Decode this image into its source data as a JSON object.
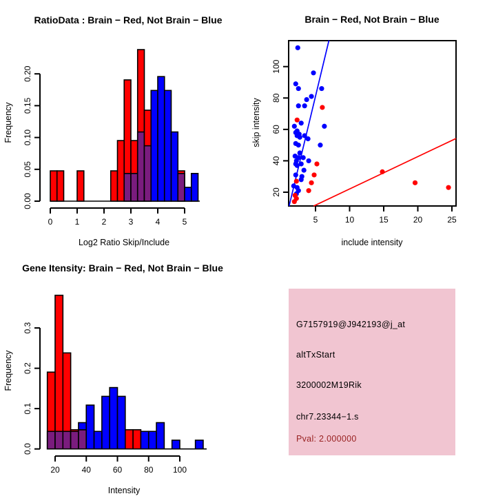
{
  "colors": {
    "red": "#FF0000",
    "blue": "#0000FF",
    "overlap_purple": "#7A1C7E",
    "axis": "#000000",
    "info_bg": "#F1C5D1",
    "pval_red": "#992222"
  },
  "chart_data": [
    {
      "id": "ratio_hist",
      "type": "histogram",
      "title": "RatioData : Brain − Red, Not Brain − Blue",
      "xlabel": "Log2 Ratio Skip/Include",
      "ylabel": "Frequency",
      "x_ticks": [
        0,
        1,
        2,
        3,
        4,
        5
      ],
      "x_tick_labels": [
        "0",
        "1",
        "2",
        "3",
        "4",
        "5"
      ],
      "y_ticks": [
        0,
        0.05,
        0.1,
        0.15,
        0.2
      ],
      "y_tick_labels": [
        "0.00",
        "0.05",
        "0.10",
        "0.15",
        "0.20"
      ],
      "bin_width": 0.25,
      "xlim": [
        0,
        5.5
      ],
      "ylim": [
        0,
        0.24
      ],
      "red_series_name": "Brain",
      "blue_series_name": "Not Brain",
      "red_bins": [
        [
          0,
          0.0476
        ],
        [
          0.25,
          0.0476
        ],
        [
          1,
          0.0476
        ],
        [
          2.25,
          0.0476
        ],
        [
          2.5,
          0.0952
        ],
        [
          2.75,
          0.1905
        ],
        [
          3,
          0.0952
        ],
        [
          3.25,
          0.2381
        ],
        [
          3.5,
          0.1429
        ],
        [
          4.75,
          0.0476
        ]
      ],
      "blue_bins": [
        [
          2.75,
          0.0435
        ],
        [
          3,
          0.0435
        ],
        [
          3.25,
          0.1087
        ],
        [
          3.5,
          0.087
        ],
        [
          3.75,
          0.1739
        ],
        [
          4,
          0.1957
        ],
        [
          4.25,
          0.1739
        ],
        [
          4.5,
          0.1087
        ],
        [
          4.75,
          0.0435
        ],
        [
          5,
          0.0217
        ],
        [
          5.25,
          0.0435
        ]
      ]
    },
    {
      "id": "scatter",
      "type": "scatter",
      "title": "Brain − Red, Not Brain − Blue",
      "xlabel": "include intensity",
      "ylabel": "skip intensity",
      "x_ticks": [
        5,
        10,
        15,
        20,
        25
      ],
      "x_tick_labels": [
        "5",
        "10",
        "15",
        "20",
        "25"
      ],
      "y_ticks": [
        20,
        40,
        60,
        80,
        100
      ],
      "y_tick_labels": [
        "20",
        "40",
        "60",
        "80",
        "100"
      ],
      "xlim": [
        1.05,
        25.6
      ],
      "ylim": [
        11.2,
        116.7
      ],
      "blue_points": [
        [
          2.4,
          112
        ],
        [
          4.7,
          96
        ],
        [
          2.1,
          89
        ],
        [
          2.5,
          86
        ],
        [
          5.9,
          86
        ],
        [
          4.4,
          81
        ],
        [
          3.7,
          79
        ],
        [
          2.5,
          75
        ],
        [
          3.4,
          75
        ],
        [
          2.9,
          64
        ],
        [
          1.9,
          62
        ],
        [
          6.3,
          62
        ],
        [
          2.3,
          59
        ],
        [
          2.1,
          58
        ],
        [
          2.6,
          57
        ],
        [
          3.4,
          56
        ],
        [
          2.3,
          56
        ],
        [
          2.7,
          55
        ],
        [
          3.9,
          54
        ],
        [
          2.1,
          51
        ],
        [
          2.5,
          50
        ],
        [
          5.7,
          50
        ],
        [
          2.7,
          45
        ],
        [
          2.0,
          43
        ],
        [
          2.5,
          42
        ],
        [
          3.2,
          42
        ],
        [
          4.0,
          40
        ],
        [
          2.2,
          40
        ],
        [
          2.1,
          38
        ],
        [
          2.9,
          38
        ],
        [
          2.3,
          37
        ],
        [
          3.3,
          34
        ],
        [
          2.1,
          31
        ],
        [
          3.0,
          30
        ],
        [
          2.9,
          28
        ],
        [
          1.8,
          24
        ],
        [
          2.3,
          23
        ],
        [
          2.5,
          21
        ],
        [
          2.2,
          19
        ]
      ],
      "red_points": [
        [
          6.0,
          74
        ],
        [
          2.3,
          66
        ],
        [
          5.2,
          38
        ],
        [
          14.8,
          33
        ],
        [
          4.8,
          31
        ],
        [
          2.2,
          27
        ],
        [
          4.4,
          26
        ],
        [
          19.6,
          26
        ],
        [
          24.5,
          23
        ],
        [
          4.0,
          21
        ],
        [
          2.0,
          18
        ],
        [
          2.2,
          16
        ],
        [
          1.9,
          14
        ]
      ],
      "blue_line": {
        "x1": 1.13,
        "y1": 11.2,
        "x2": 6.97,
        "y2": 116.7
      },
      "red_line": {
        "x1": 4.73,
        "y1": 11.2,
        "x2": 25.6,
        "y2": 54.2
      }
    },
    {
      "id": "intensity_hist",
      "type": "histogram",
      "title": "Gene Itensity: Brain − Red, Not Brain − Blue",
      "xlabel": "Intensity",
      "ylabel": "Frequency",
      "x_ticks": [
        20,
        40,
        60,
        80,
        100
      ],
      "x_tick_labels": [
        "20",
        "40",
        "60",
        "80",
        "100"
      ],
      "y_ticks": [
        0,
        0.1,
        0.2,
        0.3
      ],
      "y_tick_labels": [
        "0.0",
        "0.1",
        "0.2",
        "0.3"
      ],
      "bin_width": 5,
      "xlim": [
        15,
        115
      ],
      "ylim": [
        0,
        0.381
      ],
      "red_series_name": "Brain",
      "blue_series_name": "Not Brain",
      "red_bins": [
        [
          15,
          0.1905
        ],
        [
          20,
          0.381
        ],
        [
          25,
          0.2381
        ],
        [
          30,
          0.0476
        ],
        [
          35,
          0.0476
        ],
        [
          65,
          0.0476
        ],
        [
          70,
          0.0476
        ]
      ],
      "blue_bins": [
        [
          15,
          0.0435
        ],
        [
          20,
          0.0435
        ],
        [
          25,
          0.0435
        ],
        [
          30,
          0.0435
        ],
        [
          35,
          0.0652
        ],
        [
          40,
          0.1087
        ],
        [
          45,
          0.0435
        ],
        [
          50,
          0.1304
        ],
        [
          55,
          0.1522
        ],
        [
          60,
          0.1304
        ],
        [
          75,
          0.0435
        ],
        [
          80,
          0.0435
        ],
        [
          85,
          0.0652
        ],
        [
          95,
          0.0217
        ],
        [
          110,
          0.0217
        ]
      ]
    }
  ],
  "info_panel": {
    "lines": [
      {
        "text": "G7157919@J942193@j_at",
        "color": "#000000"
      },
      {
        "text": "altTxStart",
        "color": "#000000"
      },
      {
        "text": "3200002M19Rik",
        "color": "#000000"
      },
      {
        "text": "chr7.23344−1.s",
        "color": "#000000"
      },
      {
        "text": "Pval: 2.000000",
        "color": "#992222"
      }
    ]
  }
}
